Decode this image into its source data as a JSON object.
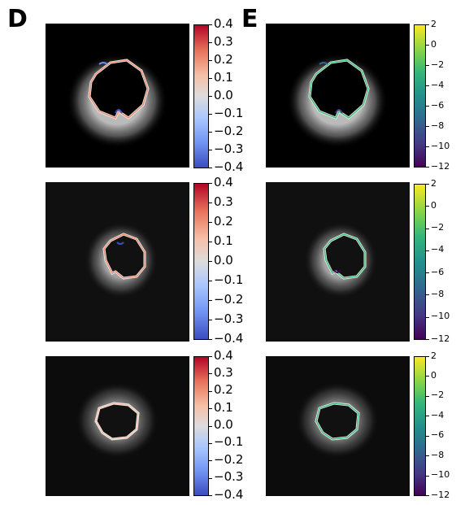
{
  "panels": {
    "D": {
      "letter": "D",
      "colorbar_ticks": [
        "0.4",
        "0.3",
        "0.2",
        "0.1",
        "0.0",
        "−0.1",
        "−0.2",
        "−0.3",
        "−0.4"
      ]
    },
    "E": {
      "letter": "E",
      "colorbar_ticks": [
        "2",
        "0",
        "−2",
        "−4",
        "−6",
        "−8",
        "−10",
        "−12"
      ]
    }
  },
  "colormaps": {
    "D": "coolwarm",
    "E": "viridis"
  }
}
